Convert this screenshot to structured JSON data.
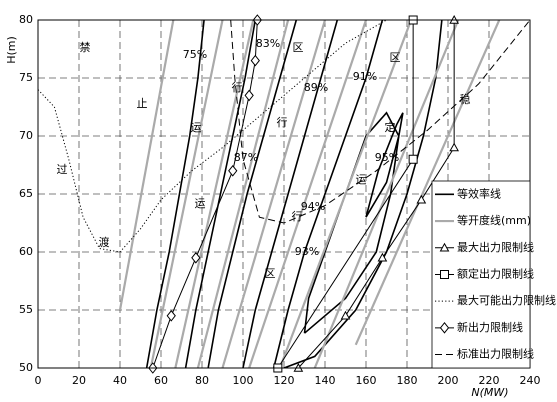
{
  "chart_data": {
    "type": "line",
    "x_label": "N(MW)",
    "y_label": "H(m)",
    "xlim": [
      0,
      240
    ],
    "ylim": [
      50,
      80
    ],
    "xticks": [
      0,
      20,
      40,
      60,
      80,
      100,
      120,
      140,
      160,
      180,
      200,
      220,
      240
    ],
    "yticks": [
      50,
      55,
      60,
      65,
      70,
      75,
      80
    ],
    "grid": true,
    "legend": "lower right",
    "annotations": [
      "禁",
      "止",
      "运",
      "行",
      "区",
      "过",
      "渡",
      "运",
      "行",
      "区",
      "稳",
      "定",
      "运",
      "行",
      "区",
      "75%",
      "83%",
      "87%",
      "89%",
      "91%",
      "95%",
      "94%",
      "93%"
    ],
    "series": [
      {
        "name": "等效率线",
        "color": "#000000",
        "style": "solid",
        "width": 1.6,
        "curves": [
          {
            "x": [
              53,
              58,
              64,
              69,
              74,
              78,
              81
            ],
            "y": [
              50,
              55,
              60,
              65,
              70,
              75,
              80
            ]
          },
          {
            "x": [
              72,
              77,
              83,
              89,
              95,
              101,
              106
            ],
            "y": [
              50,
              55,
              60,
              65,
              70,
              75,
              80
            ]
          },
          {
            "x": [
              83,
              88,
              95,
              102,
              110,
              118,
              126
            ],
            "y": [
              50,
              55,
              60,
              65,
              70,
              75,
              80
            ]
          },
          {
            "x": [
              100,
              106,
              114,
              122,
              130,
              138,
              146
            ],
            "y": [
              50,
              55,
              60,
              65,
              70,
              75,
              80
            ]
          },
          {
            "x": [
              115,
              122,
              130,
              140,
              150,
              160,
              168
            ],
            "y": [
              50,
              55,
              60,
              65,
              70,
              75,
              80
            ]
          },
          {
            "x": [
              120,
              135,
              155,
              170,
              180,
              188,
              194,
              197
            ],
            "y": [
              50,
              51,
              55,
              60,
              65,
              70,
              75,
              80
            ]
          },
          {
            "x": [
              130,
              150,
              165,
              172,
              176,
              170,
              160,
              150,
              140,
              132,
              130
            ],
            "y": [
              53,
              56,
              60,
              65,
              70,
              72,
              70,
              65,
              60,
              56,
              53
            ]
          },
          {
            "x": [
              160,
              170,
              176,
              178,
              175,
              166,
              160
            ],
            "y": [
              63,
              66,
              70,
              72,
              71,
              67,
              63
            ]
          }
        ]
      },
      {
        "name": "等开度线(mm)",
        "color": "#aaaaaa",
        "style": "solid",
        "width": 2.2,
        "curves": [
          {
            "x": [
              40,
              66
            ],
            "y": [
              55,
              80
            ]
          },
          {
            "x": [
              55,
              90
            ],
            "y": [
              50,
              80
            ]
          },
          {
            "x": [
              67,
              105
            ],
            "y": [
              50,
              80
            ]
          },
          {
            "x": [
              78,
              122
            ],
            "y": [
              50,
              80
            ]
          },
          {
            "x": [
              90,
              140
            ],
            "y": [
              50,
              80
            ]
          },
          {
            "x": [
              103,
              160
            ],
            "y": [
              50,
              80
            ]
          },
          {
            "x": [
              118,
              182
            ],
            "y": [
              50,
              80
            ]
          },
          {
            "x": [
              135,
              205
            ],
            "y": [
              50,
              80
            ]
          },
          {
            "x": [
              155,
              225
            ],
            "y": [
              52,
              80
            ]
          }
        ]
      },
      {
        "name": "最大出力限制线",
        "color": "#000000",
        "style": "solid",
        "width": 1,
        "marker": "triangle",
        "curves": [
          {
            "x": [
              127,
              150,
              168,
              187,
              203,
              203
            ],
            "y": [
              50,
              54.5,
              59.5,
              64.5,
              69,
              80
            ]
          }
        ]
      },
      {
        "name": "额定出力限制线",
        "color": "#000000",
        "style": "solid",
        "width": 1,
        "marker": "square",
        "curves": [
          {
            "x": [
              117,
              183,
              183
            ],
            "y": [
              50,
              68,
              80
            ]
          }
        ]
      },
      {
        "name": "最大可能出力限制线",
        "color": "#000000",
        "style": "dotted",
        "width": 1,
        "curves": [
          {
            "x": [
              0,
              8,
              15,
              22,
              30,
              40,
              50,
              60,
              75,
              90,
              110,
              130,
              150,
              170
            ],
            "y": [
              74,
              72.5,
              68,
              63,
              60.3,
              60,
              62,
              64.5,
              67,
              69,
              72,
              75,
              78,
              80
            ]
          }
        ]
      },
      {
        "name": "新出力限制线",
        "color": "#000000",
        "style": "solid",
        "width": 1,
        "marker": "diamond",
        "curves": [
          {
            "x": [
              56,
              65,
              77,
              95,
              103,
              106,
              107
            ],
            "y": [
              50,
              54.5,
              59.5,
              67,
              73.5,
              76.5,
              80
            ]
          }
        ]
      },
      {
        "name": "标准出力限制线",
        "color": "#000000",
        "style": "dashed",
        "width": 1,
        "curves": [
          {
            "x": [
              94,
              96,
              100,
              108,
              120,
              140,
              165,
              190,
              215,
              240
            ],
            "y": [
              80,
              75,
              68,
              63,
              62.5,
              64,
              67,
              70.5,
              74.5,
              80
            ]
          }
        ]
      }
    ]
  }
}
